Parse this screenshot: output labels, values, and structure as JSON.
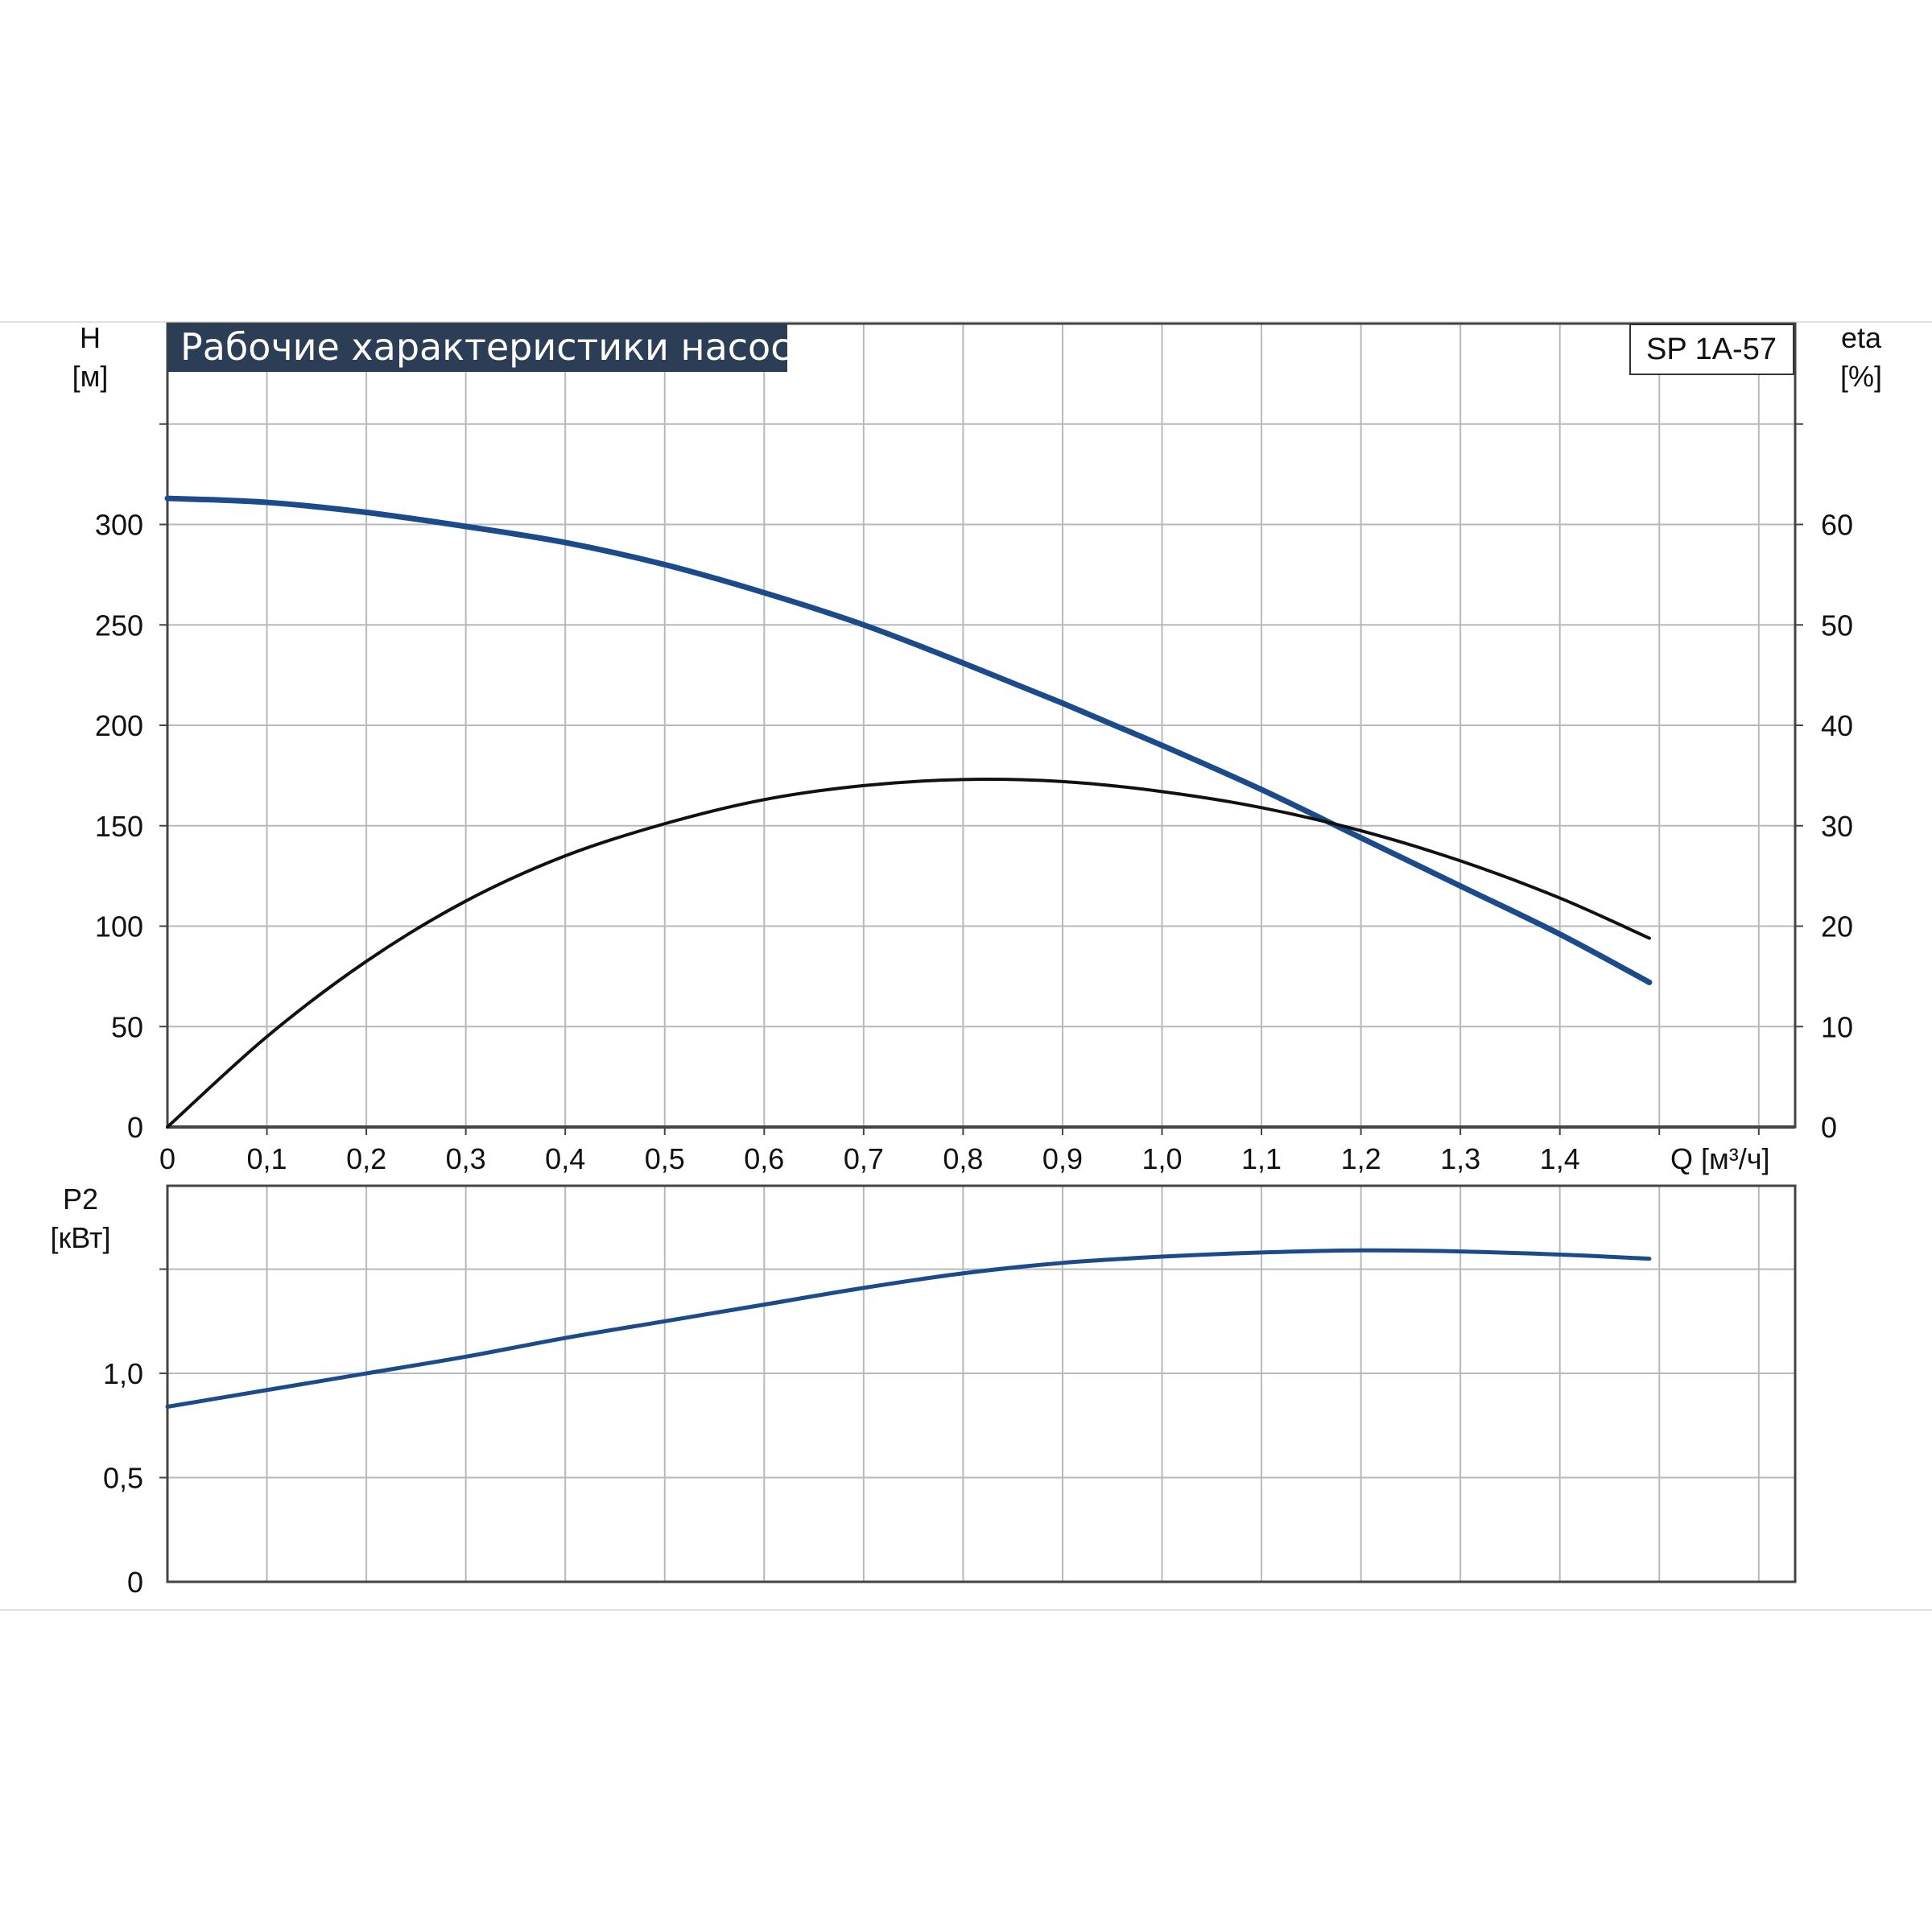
{
  "chart_data": [
    {
      "type": "line",
      "title": "Рабочие характеристики насоса",
      "model": "SP 1A-57",
      "xlabel": "Q [м³/ч]",
      "ylabel_left": [
        "H",
        "[м]"
      ],
      "ylabel_right": [
        "eta",
        "[%]"
      ],
      "xlim": [
        0,
        1.6
      ],
      "ylim_left": [
        0,
        400
      ],
      "ylim_right": [
        0,
        80
      ],
      "x_ticks": [
        {
          "v": 0,
          "label": "0"
        },
        {
          "v": 0.1,
          "label": "0,1"
        },
        {
          "v": 0.2,
          "label": "0,2"
        },
        {
          "v": 0.3,
          "label": "0,3"
        },
        {
          "v": 0.4,
          "label": "0,4"
        },
        {
          "v": 0.5,
          "label": "0,5"
        },
        {
          "v": 0.6,
          "label": "0,6"
        },
        {
          "v": 0.7,
          "label": "0,7"
        },
        {
          "v": 0.8,
          "label": "0,8"
        },
        {
          "v": 0.9,
          "label": "0,9"
        },
        {
          "v": 1.0,
          "label": "1,0"
        },
        {
          "v": 1.1,
          "label": "1,1"
        },
        {
          "v": 1.2,
          "label": "1,2"
        },
        {
          "v": 1.3,
          "label": "1,3"
        },
        {
          "v": 1.4,
          "label": "1,4"
        }
      ],
      "y_ticks_left": [
        {
          "v": 0,
          "label": "0"
        },
        {
          "v": 50,
          "label": "50"
        },
        {
          "v": 100,
          "label": "100"
        },
        {
          "v": 150,
          "label": "150"
        },
        {
          "v": 200,
          "label": "200"
        },
        {
          "v": 250,
          "label": "250"
        },
        {
          "v": 300,
          "label": "300"
        }
      ],
      "y_ticks_right": [
        {
          "v": 0,
          "label": "0"
        },
        {
          "v": 10,
          "label": "10"
        },
        {
          "v": 20,
          "label": "20"
        },
        {
          "v": 30,
          "label": "30"
        },
        {
          "v": 40,
          "label": "40"
        },
        {
          "v": 50,
          "label": "50"
        },
        {
          "v": 60,
          "label": "60"
        }
      ],
      "grid": true,
      "series": [
        {
          "axis": "left",
          "color": "#1c4b8c",
          "x": [
            0,
            0.1,
            0.2,
            0.3,
            0.4,
            0.5,
            0.6,
            0.7,
            0.8,
            0.9,
            1.0,
            1.1,
            1.2,
            1.3,
            1.4,
            1.49
          ],
          "y": [
            313,
            311,
            306,
            299,
            291,
            280,
            266,
            250,
            231,
            211,
            190,
            168,
            144,
            120,
            96,
            72
          ]
        },
        {
          "axis": "right",
          "color": "#111111",
          "x": [
            0,
            0.1,
            0.2,
            0.3,
            0.4,
            0.5,
            0.6,
            0.7,
            0.8,
            0.9,
            1.0,
            1.1,
            1.2,
            1.3,
            1.4,
            1.49
          ],
          "y": [
            0,
            9,
            16.5,
            22.5,
            27,
            30.2,
            32.6,
            34,
            34.6,
            34.4,
            33.4,
            31.8,
            29.5,
            26.5,
            22.8,
            18.8
          ]
        }
      ]
    },
    {
      "type": "line",
      "ylabel": [
        "P2",
        "[кВт]"
      ],
      "xlim": [
        0,
        1.6
      ],
      "ylim": [
        0,
        1.9
      ],
      "y_ticks": [
        {
          "v": 0,
          "label": "0"
        },
        {
          "v": 0.5,
          "label": "0,5"
        },
        {
          "v": 1.0,
          "label": "1,0"
        },
        {
          "v": 1.5,
          "label": ""
        }
      ],
      "grid": true,
      "series": [
        {
          "color": "#1c4b8c",
          "x": [
            0,
            0.1,
            0.2,
            0.3,
            0.4,
            0.5,
            0.6,
            0.7,
            0.8,
            0.9,
            1.0,
            1.1,
            1.2,
            1.3,
            1.4,
            1.49
          ],
          "y": [
            0.84,
            0.92,
            1.0,
            1.08,
            1.17,
            1.25,
            1.33,
            1.41,
            1.48,
            1.53,
            1.56,
            1.58,
            1.59,
            1.585,
            1.57,
            1.55
          ]
        }
      ]
    }
  ]
}
